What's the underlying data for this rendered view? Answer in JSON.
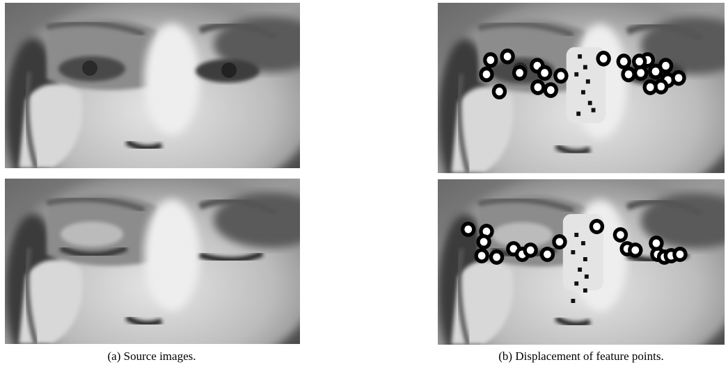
{
  "figure": {
    "subfigures": [
      {
        "caption": "(a) Source images."
      },
      {
        "caption": "(b) Displacement of feature points."
      }
    ]
  }
}
